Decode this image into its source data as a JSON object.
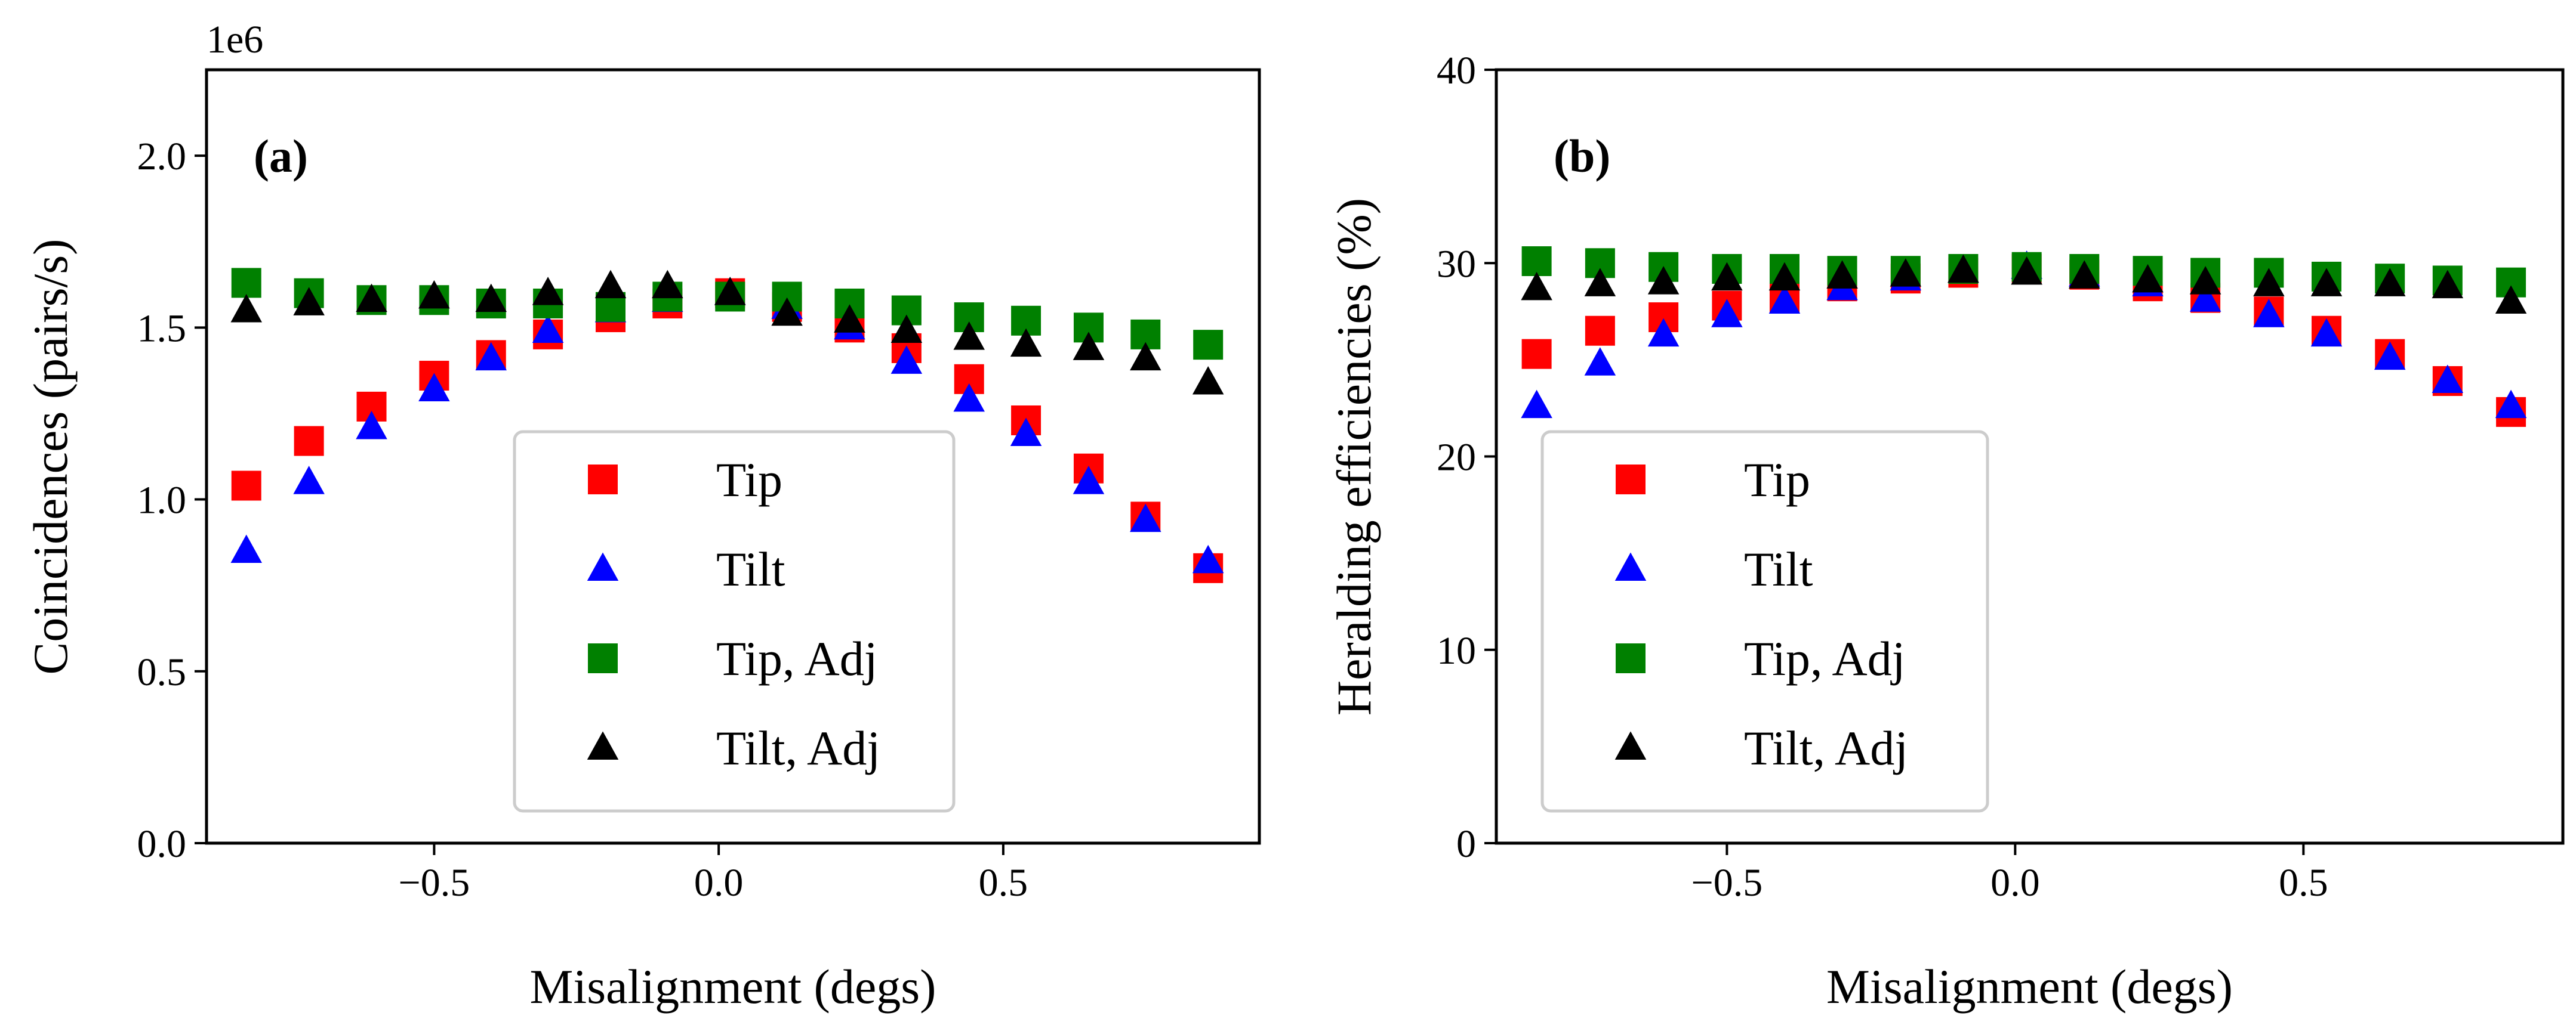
{
  "chart_data": [
    {
      "type": "scatter",
      "panel_label": "(a)",
      "title": "",
      "xlabel": "Misalignment (degs)",
      "ylabel": "Coincidences (pairs/s)",
      "y_offset_label": "1e6",
      "xlim": [
        -0.9,
        0.95
      ],
      "ylim": [
        0.0,
        2.25
      ],
      "xticks": [
        -0.5,
        0.0,
        0.5
      ],
      "xtick_labels": [
        "−0.5",
        "0.0",
        "0.5"
      ],
      "yticks": [
        0.0,
        0.5,
        1.0,
        1.5,
        2.0
      ],
      "ytick_labels": [
        "0.0",
        "0.5",
        "1.0",
        "1.5",
        "2.0"
      ],
      "legend_position": "lower-center",
      "grid": false,
      "series": [
        {
          "name": "Tip",
          "marker": "square",
          "color": "#ff0000",
          "x": [
            -0.83,
            -0.72,
            -0.61,
            -0.5,
            -0.4,
            -0.3,
            -0.19,
            -0.09,
            0.02,
            0.12,
            0.23,
            0.33,
            0.44,
            0.54,
            0.65,
            0.75,
            0.86
          ],
          "y": [
            1.04,
            1.17,
            1.27,
            1.36,
            1.42,
            1.48,
            1.53,
            1.57,
            1.6,
            1.56,
            1.5,
            1.44,
            1.35,
            1.23,
            1.09,
            0.95,
            0.8
          ]
        },
        {
          "name": "Tilt",
          "marker": "triangle",
          "color": "#0000ff",
          "x": [
            -0.83,
            -0.72,
            -0.61,
            -0.5,
            -0.4,
            -0.3,
            -0.19,
            -0.09,
            0.02,
            0.12,
            0.23,
            0.33,
            0.44,
            0.54,
            0.65,
            0.75,
            0.86
          ],
          "y": [
            0.85,
            1.05,
            1.21,
            1.32,
            1.41,
            1.49,
            1.55,
            1.58,
            1.6,
            1.56,
            1.5,
            1.4,
            1.29,
            1.19,
            1.05,
            0.94,
            0.82
          ]
        },
        {
          "name": "Tip, Adj",
          "marker": "square",
          "color": "#008000",
          "x": [
            -0.83,
            -0.72,
            -0.61,
            -0.5,
            -0.4,
            -0.3,
            -0.19,
            -0.09,
            0.02,
            0.12,
            0.23,
            0.33,
            0.44,
            0.54,
            0.65,
            0.75,
            0.86
          ],
          "y": [
            1.63,
            1.6,
            1.58,
            1.58,
            1.57,
            1.57,
            1.56,
            1.59,
            1.59,
            1.59,
            1.57,
            1.55,
            1.53,
            1.52,
            1.5,
            1.48,
            1.45
          ]
        },
        {
          "name": "Tilt, Adj",
          "marker": "triangle",
          "color": "#000000",
          "x": [
            -0.83,
            -0.72,
            -0.61,
            -0.5,
            -0.4,
            -0.3,
            -0.19,
            -0.09,
            0.02,
            0.12,
            0.23,
            0.33,
            0.44,
            0.54,
            0.65,
            0.75,
            0.86
          ],
          "y": [
            1.55,
            1.57,
            1.58,
            1.59,
            1.58,
            1.6,
            1.62,
            1.62,
            1.6,
            1.54,
            1.52,
            1.49,
            1.47,
            1.45,
            1.44,
            1.41,
            1.34
          ]
        }
      ]
    },
    {
      "type": "scatter",
      "panel_label": "(b)",
      "title": "",
      "xlabel": "Misalignment (degs)",
      "ylabel": "Heralding efficiencies (%)",
      "xlim": [
        -0.9,
        0.95
      ],
      "ylim": [
        0,
        40
      ],
      "xticks": [
        -0.5,
        0.0,
        0.5
      ],
      "xtick_labels": [
        "−0.5",
        "0.0",
        "0.5"
      ],
      "yticks": [
        0,
        10,
        20,
        30,
        40
      ],
      "ytick_labels": [
        "0",
        "10",
        "20",
        "30",
        "40"
      ],
      "legend_position": "lower-left",
      "grid": false,
      "series": [
        {
          "name": "Tip",
          "marker": "square",
          "color": "#ff0000",
          "x": [
            -0.83,
            -0.72,
            -0.61,
            -0.5,
            -0.4,
            -0.3,
            -0.19,
            -0.09,
            0.02,
            0.12,
            0.23,
            0.33,
            0.44,
            0.54,
            0.65,
            0.75,
            0.86
          ],
          "y": [
            25.3,
            26.5,
            27.2,
            27.8,
            28.2,
            28.8,
            29.2,
            29.5,
            29.7,
            29.4,
            28.8,
            28.2,
            27.5,
            26.5,
            25.3,
            23.9,
            22.3
          ]
        },
        {
          "name": "Tilt",
          "marker": "triangle",
          "color": "#0000ff",
          "x": [
            -0.83,
            -0.72,
            -0.61,
            -0.5,
            -0.4,
            -0.3,
            -0.19,
            -0.09,
            0.02,
            0.12,
            0.23,
            0.33,
            0.44,
            0.54,
            0.65,
            0.75,
            0.86
          ],
          "y": [
            22.6,
            24.8,
            26.3,
            27.3,
            28.0,
            28.7,
            29.2,
            29.6,
            29.8,
            29.4,
            28.9,
            28.1,
            27.3,
            26.3,
            25.1,
            23.9,
            22.6
          ]
        },
        {
          "name": "Tip, Adj",
          "marker": "square",
          "color": "#008000",
          "x": [
            -0.83,
            -0.72,
            -0.61,
            -0.5,
            -0.4,
            -0.3,
            -0.19,
            -0.09,
            0.02,
            0.12,
            0.23,
            0.33,
            0.44,
            0.54,
            0.65,
            0.75,
            0.86
          ],
          "y": [
            30.1,
            30.0,
            29.8,
            29.7,
            29.7,
            29.6,
            29.6,
            29.7,
            29.8,
            29.7,
            29.6,
            29.5,
            29.5,
            29.3,
            29.2,
            29.1,
            29.0
          ]
        },
        {
          "name": "Tilt, Adj",
          "marker": "triangle",
          "color": "#000000",
          "x": [
            -0.83,
            -0.72,
            -0.61,
            -0.5,
            -0.4,
            -0.3,
            -0.19,
            -0.09,
            0.02,
            0.12,
            0.23,
            0.33,
            0.44,
            0.54,
            0.65,
            0.75,
            0.86
          ],
          "y": [
            28.7,
            28.9,
            29.0,
            29.2,
            29.2,
            29.3,
            29.4,
            29.6,
            29.5,
            29.3,
            29.1,
            29.0,
            28.9,
            28.9,
            28.9,
            28.8,
            28.0
          ]
        }
      ]
    }
  ]
}
